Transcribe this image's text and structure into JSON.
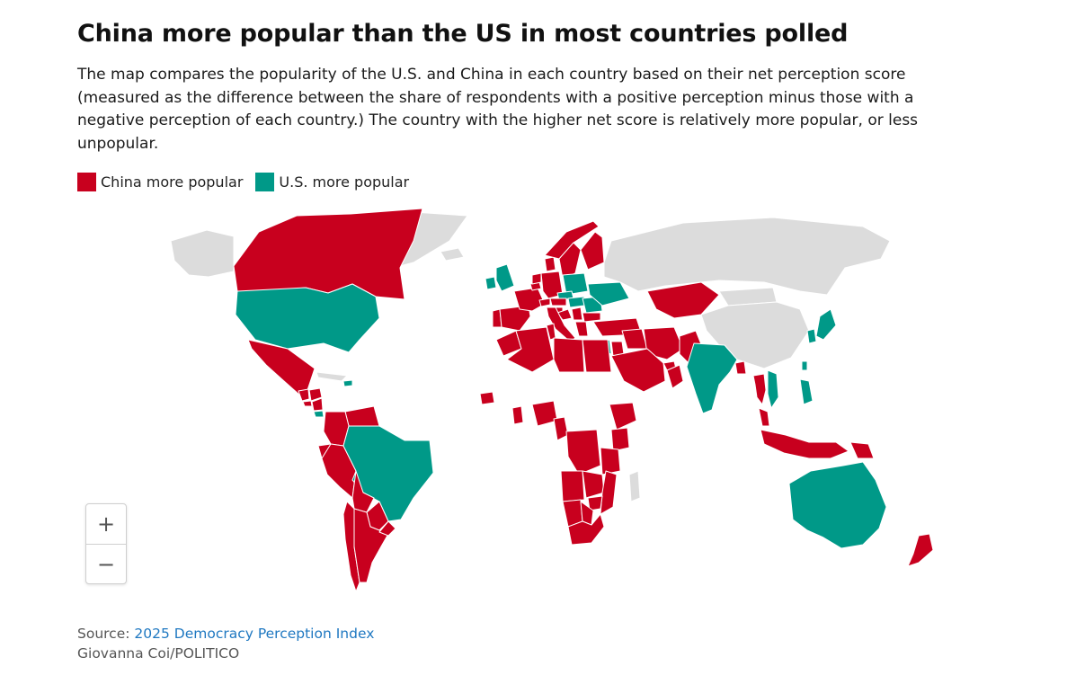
{
  "header": {
    "title": "China more popular than the US in most countries polled",
    "subtitle": "The map compares the popularity of the U.S. and China in each country based on their net perception score (measured as the difference between the share of respondents with a positive perception minus those with a negative perception of each country.) The country with the higher net score is relatively more popular, or less unpopular."
  },
  "legend": {
    "china_label": "China more popular",
    "us_label": "U.S. more popular"
  },
  "colors": {
    "china": "#c8001e",
    "us": "#009988",
    "no_data": "#dcdcdc",
    "border": "#ffffff"
  },
  "zoom": {
    "in_label": "+",
    "out_label": "−"
  },
  "footer": {
    "source_prefix": "Source: ",
    "source_link": "2025 Democracy Perception Index",
    "credit": "Giovanna Coi/POLITICO"
  },
  "chart_data": {
    "type": "choropleth",
    "categories": [
      "China more popular",
      "U.S. more popular"
    ],
    "china_more_popular": [
      "Canada",
      "Mexico",
      "Guatemala",
      "Honduras",
      "El Salvador",
      "Nicaragua",
      "Colombia",
      "Venezuela",
      "Ecuador",
      "Peru",
      "Bolivia",
      "Chile",
      "Argentina",
      "Paraguay",
      "Uruguay",
      "Spain",
      "Portugal",
      "France",
      "Belgium",
      "Netherlands",
      "Germany",
      "Denmark",
      "Norway",
      "Sweden",
      "Finland",
      "Switzerland",
      "Austria",
      "Italy",
      "Slovenia",
      "Croatia",
      "Serbia",
      "Greece",
      "Bulgaria",
      "Turkey",
      "Morocco",
      "Algeria",
      "Tunisia",
      "Libya",
      "Egypt",
      "Saudi Arabia",
      "Jordan",
      "Iraq",
      "Iran",
      "United Arab Emirates",
      "Oman",
      "Kazakhstan",
      "Pakistan",
      "Bangladesh",
      "Thailand",
      "Malaysia",
      "Indonesia",
      "Papua New Guinea",
      "New Zealand",
      "Senegal",
      "Ghana",
      "Nigeria",
      "Cameroon",
      "Ethiopia",
      "Kenya",
      "Democratic Republic of the Congo",
      "Angola",
      "Zambia",
      "Tanzania",
      "Mozambique",
      "Zimbabwe",
      "Botswana",
      "Namibia",
      "South Africa"
    ],
    "us_more_popular": [
      "United States",
      "Brazil",
      "Costa Rica",
      "Dominican Republic",
      "United Kingdom",
      "Ireland",
      "Poland",
      "Czechia",
      "Hungary",
      "Romania",
      "Ukraine",
      "Israel",
      "India",
      "Vietnam",
      "Philippines",
      "Taiwan",
      "South Korea",
      "Japan",
      "Australia"
    ]
  }
}
